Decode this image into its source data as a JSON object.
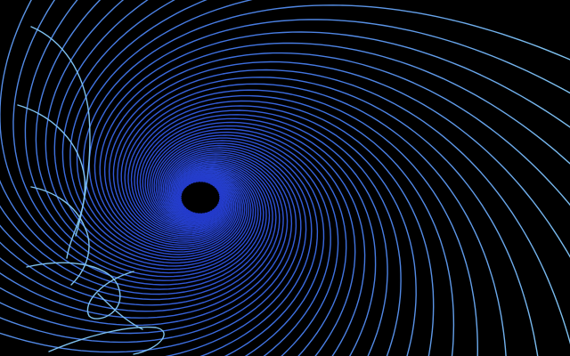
{
  "scene": {
    "background": "#000000",
    "colors": {
      "line_near_center": "#1f33c8",
      "line_mid": "#3d6fe0",
      "line_far": "#7fc2f0",
      "center_blob": "#000000"
    },
    "field_line_count": 44
  }
}
